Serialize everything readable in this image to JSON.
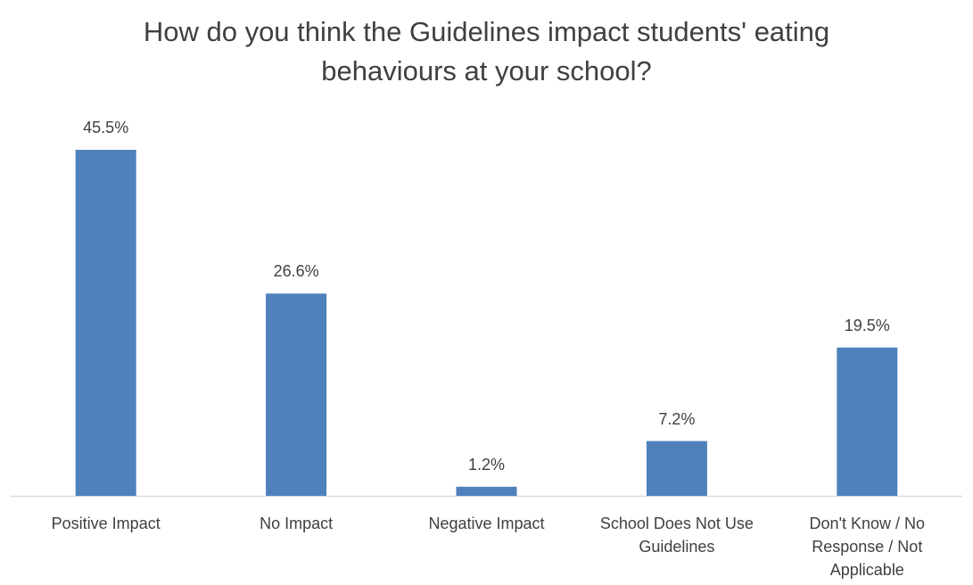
{
  "chart_data": {
    "type": "bar",
    "title_lines": [
      "How do you think the Guidelines impact students' eating",
      "behaviours at your school?"
    ],
    "categories": [
      [
        "Positive Impact"
      ],
      [
        "No Impact"
      ],
      [
        "Negative Impact"
      ],
      [
        "School Does Not Use",
        "Guidelines"
      ],
      [
        "Don't Know / No",
        "Response / Not",
        "Applicable"
      ]
    ],
    "values": [
      45.5,
      26.6,
      1.2,
      7.2,
      19.5
    ],
    "value_labels": [
      "45.5%",
      "26.6%",
      "1.2%",
      "7.2%",
      "19.5%"
    ],
    "ylim": [
      0,
      50
    ],
    "grid": false,
    "legend": "none",
    "bar_color": "#4f81bd",
    "axis_color": "#d9d9d9"
  }
}
